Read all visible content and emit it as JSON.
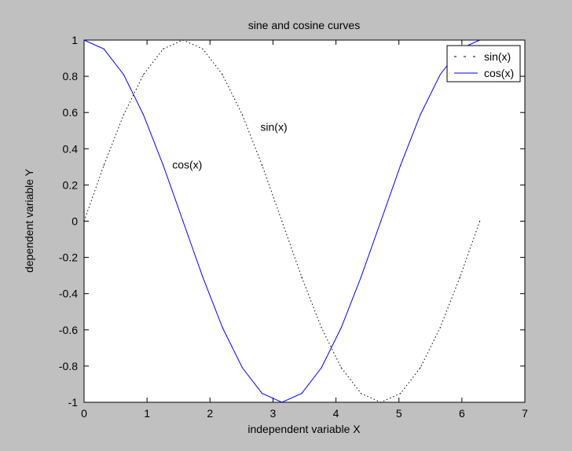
{
  "colors": {
    "figure_bg": "#c0c0c0",
    "axes_bg": "#ffffff",
    "sin_color": "#000000",
    "cos_color": "#0000ff"
  },
  "chart_data": {
    "type": "line",
    "title": "sine and cosine curves",
    "xlabel": "independent variable X",
    "ylabel": "dependent variable Y",
    "xlim": [
      0,
      7
    ],
    "ylim": [
      -1,
      1
    ],
    "xticks": [
      "0",
      "1",
      "2",
      "3",
      "4",
      "5",
      "6",
      "7"
    ],
    "yticks": [
      "1",
      "0.8",
      "0.6",
      "0.4",
      "0.2",
      "0",
      "-0.2",
      "-0.4",
      "-0.6",
      "-0.8",
      "-1"
    ],
    "grid": false,
    "legend_position": "top-right",
    "x": [
      0,
      0.3142,
      0.6283,
      0.9425,
      1.2566,
      1.5708,
      1.885,
      2.1991,
      2.5133,
      2.8274,
      3.1416,
      3.4558,
      3.7699,
      4.0841,
      4.3982,
      4.7124,
      5.0265,
      5.3407,
      5.6549,
      5.969,
      6.2832
    ],
    "series": [
      {
        "name": "sin(x)",
        "style": "dotted",
        "values": [
          0,
          0.309,
          0.588,
          0.809,
          0.951,
          1,
          0.951,
          0.809,
          0.588,
          0.309,
          0,
          -0.309,
          -0.588,
          -0.809,
          -0.951,
          -1,
          -0.951,
          -0.809,
          -0.588,
          -0.309,
          0
        ]
      },
      {
        "name": "cos(x)",
        "style": "solid",
        "values": [
          1,
          0.951,
          0.809,
          0.588,
          0.309,
          0,
          -0.309,
          -0.588,
          -0.809,
          -0.951,
          -1,
          -0.951,
          -0.809,
          -0.588,
          -0.309,
          0,
          0.309,
          0.588,
          0.809,
          0.951,
          1
        ]
      }
    ],
    "annotations": [
      {
        "text": "sin(x)",
        "x": 2.8,
        "y": 0.5
      },
      {
        "text": "cos(x)",
        "x": 1.4,
        "y": 0.29
      }
    ]
  }
}
